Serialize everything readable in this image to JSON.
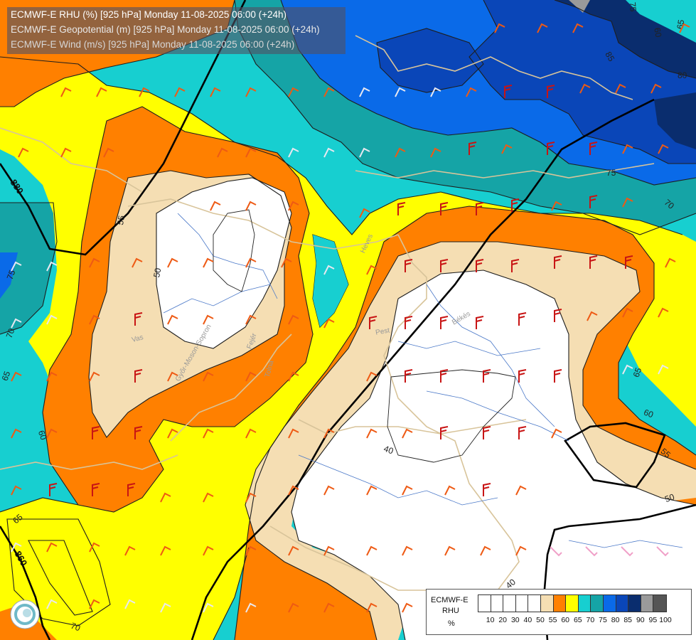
{
  "titles": [
    "ECMWF-E RHU (%) [925 hPa] Monday 11-08-2025 06:00 (+24h)",
    "ECMWF-E Geopotential (m) [925 hPa] Monday 11-08-2025 06:00 (+24h)",
    "ECMWF-E Wind (m/s) [925 hPa] Monday 11-08-2025 06:00 (+24h)"
  ],
  "legend": {
    "model": "ECMWF-E",
    "variable": "RHU",
    "unit": "%",
    "levels": [
      "10",
      "20",
      "30",
      "40",
      "50",
      "55",
      "60",
      "65",
      "70",
      "75",
      "80",
      "85",
      "90",
      "95",
      "100"
    ],
    "colors": [
      "#ffffff",
      "#ffffff",
      "#ffffff",
      "#ffffff",
      "#ffffff",
      "#f5deb3",
      "#ff8000",
      "#ffff00",
      "#17cfd0",
      "#15a4a6",
      "#0a6ae8",
      "#0a46b8",
      "#0a2d6e",
      "#9a9a9a",
      "#555555"
    ]
  },
  "contour_labels": {
    "rhu": [
      "55",
      "50",
      "75",
      "70",
      "65",
      "60",
      "65",
      "70",
      "75",
      "80",
      "85",
      "75",
      "70",
      "65",
      "60",
      "55",
      "50",
      "40",
      "40",
      "60",
      "65",
      "70"
    ],
    "geopotential": [
      "880",
      "860"
    ]
  },
  "place_labels": [
    "Vas",
    "Győr-Moson-Sopron",
    "Fejér",
    "Pest",
    "Heves",
    "Békés",
    "Tolna"
  ],
  "colors": {
    "white": "#ffffff",
    "tan": "#f5deb3",
    "orange": "#ff8000",
    "yellow": "#ffff00",
    "cyan": "#17cfd0",
    "teal": "#15a4a6",
    "blue": "#0a6ae8",
    "darkblue": "#0a46b8",
    "navy": "#0a2d6e",
    "grey": "#9a9a9a",
    "wind_orange": "#ee5a14",
    "wind_red": "#c81414",
    "wind_white": "#e8e8f0",
    "wind_pink": "#f0a0c8",
    "border": "#d8c49a",
    "river": "#4a78c8"
  },
  "icons": [
    "wind-barb-icon",
    "ecmwf-logo-icon"
  ]
}
